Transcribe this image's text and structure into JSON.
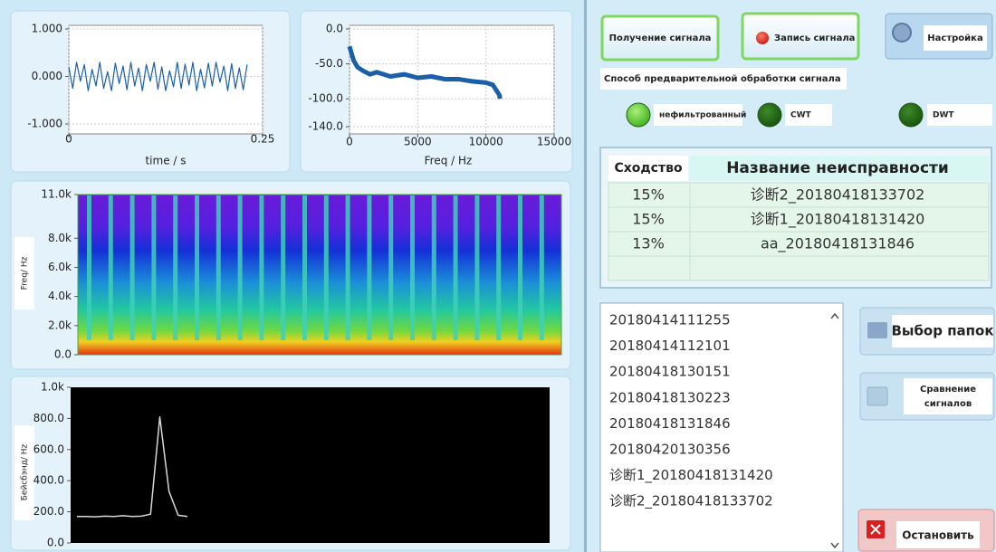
{
  "left_panel": {
    "waveform": {
      "type": "line",
      "xlabel": "time / s",
      "xlim": [
        0,
        0.25
      ],
      "xticks": [
        0,
        0.25
      ],
      "ylim": [
        -1,
        1
      ],
      "yticks": [
        {
          "value": 1,
          "label": "1.000"
        },
        {
          "value": 0,
          "label": "0.000"
        },
        {
          "value": -1,
          "label": "-1.000"
        }
      ],
      "grid": true,
      "color": "#1a5fa8",
      "x": [
        0,
        0.005,
        0.01,
        0.015,
        0.02,
        0.025,
        0.03,
        0.035,
        0.04,
        0.045,
        0.05,
        0.055,
        0.06,
        0.065,
        0.07,
        0.075,
        0.08,
        0.085,
        0.09,
        0.095,
        0.1,
        0.105,
        0.11,
        0.115,
        0.12,
        0.125,
        0.13,
        0.135,
        0.14,
        0.145,
        0.15,
        0.155,
        0.16,
        0.165,
        0.17,
        0.175,
        0.18,
        0.185,
        0.19,
        0.195,
        0.2,
        0.205,
        0.21,
        0.215,
        0.22,
        0.225,
        0.23
      ],
      "values": [
        0.2,
        -0.25,
        0.3,
        -0.1,
        0.25,
        -0.3,
        0.15,
        -0.2,
        0.3,
        -0.25,
        0.1,
        -0.3,
        0.28,
        -0.15,
        0.22,
        -0.28,
        0.3,
        -0.2,
        0.18,
        -0.3,
        0.25,
        -0.1,
        0.3,
        -0.27,
        0.2,
        -0.3,
        0.12,
        -0.22,
        0.3,
        -0.25,
        0.26,
        -0.18,
        0.3,
        -0.3,
        0.15,
        -0.24,
        0.28,
        -0.2,
        0.3,
        -0.12,
        0.22,
        -0.3,
        0.27,
        -0.25,
        0.18,
        -0.28,
        0.25
      ]
    },
    "spectrum": {
      "type": "line",
      "xlabel": "Freq  / Hz",
      "xlim": [
        0,
        15000
      ],
      "xticks": [
        0,
        5000,
        10000,
        15000
      ],
      "ylim": [
        -140,
        0
      ],
      "yticks": [
        {
          "value": 0,
          "label": "0.0"
        },
        {
          "value": -50,
          "label": "-50.0"
        },
        {
          "value": -100,
          "label": "-100.0"
        },
        {
          "value": -140,
          "label": "-140.0"
        }
      ],
      "grid": true,
      "color": "#1a5fa8",
      "x": [
        0,
        300,
        600,
        1000,
        1500,
        2000,
        3000,
        4000,
        5000,
        6000,
        7000,
        8000,
        9000,
        10000,
        10500,
        11000,
        11025
      ],
      "values": [
        -25,
        -45,
        -55,
        -60,
        -65,
        -62,
        -68,
        -65,
        -70,
        -68,
        -72,
        -72,
        -75,
        -77,
        -80,
        -95,
        -100
      ]
    },
    "spectrogram": {
      "type": "heatmap",
      "ylabel": "Freq/ Hz",
      "ylim": [
        0,
        11000
      ],
      "yticks": [
        {
          "value": 11000,
          "label": "11.0k"
        },
        {
          "value": 8000,
          "label": "8.0k"
        },
        {
          "value": 6000,
          "label": "6.0k"
        },
        {
          "value": 4000,
          "label": "4.0k"
        },
        {
          "value": 2000,
          "label": "2.0k"
        },
        {
          "value": 0,
          "label": "0.0"
        }
      ]
    },
    "baseband": {
      "type": "line",
      "ylabel": "Бейсбэнд/ Hz",
      "ylim": [
        0,
        1000
      ],
      "yticks": [
        {
          "value": 1000,
          "label": "1.0k"
        },
        {
          "value": 800,
          "label": "800.0"
        },
        {
          "value": 600,
          "label": "600.0"
        },
        {
          "value": 400,
          "label": "400.0"
        },
        {
          "value": 200,
          "label": "200.0"
        },
        {
          "value": 0,
          "label": "0.0"
        }
      ],
      "color": "#d8d8d8",
      "values": [
        170,
        170,
        168,
        172,
        170,
        175,
        170,
        172,
        185,
        810,
        330,
        178,
        170
      ]
    }
  },
  "buttons": {
    "acquire": "Получение сигнала",
    "record": "Запись сигнала",
    "settings": "Настройка",
    "folders": "Выбор папок",
    "compare": [
      "Сравнение",
      "сигналов"
    ],
    "stop": "Остановить"
  },
  "preprocessing": {
    "label": "Способ предварительной обработки сигнала",
    "options": [
      {
        "label": "нефильтрованный",
        "active": true
      },
      {
        "label": "CWT",
        "active": false
      },
      {
        "label": "DWT",
        "active": false
      }
    ]
  },
  "table": {
    "headers": [
      "Сходство",
      "Название неисправности"
    ],
    "rows": [
      [
        "15%",
        "诊断2_20180418133702"
      ],
      [
        "15%",
        "诊断1_20180418131420"
      ],
      [
        "13%",
        "aa_20180418131846"
      ]
    ]
  },
  "file_list": {
    "items": [
      "20180414111255",
      "20180414112101",
      "20180418130151",
      "20180418130223",
      "20180418131846",
      "20180420130356",
      "诊断1_20180418131420",
      "诊断2_20180418133702"
    ]
  }
}
